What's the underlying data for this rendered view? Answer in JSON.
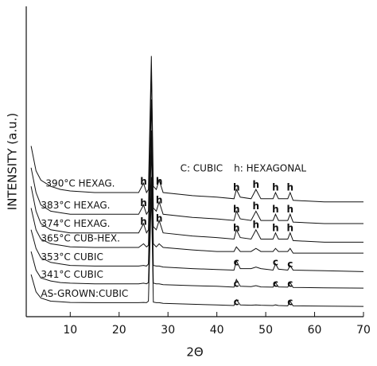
{
  "chart_data": {
    "type": "line",
    "x_label": "2Θ",
    "y_label": "INTENSITY  (a.u.)",
    "xlim": [
      1,
      70
    ],
    "ylim": [
      0,
      100
    ],
    "xticks": [
      10,
      20,
      30,
      40,
      50,
      60,
      70
    ],
    "color": "#111111",
    "x": [
      2,
      3,
      4,
      6,
      8,
      10,
      15,
      20,
      24,
      25,
      25.6,
      26,
      26.6,
      27,
      27.6,
      28.2,
      29,
      35,
      40,
      43.5,
      44,
      44.8,
      47,
      48,
      49,
      51.5,
      52,
      52.6,
      54.5,
      55,
      55.6,
      62,
      70
    ],
    "series": [
      {
        "name": "390°C HEXAG.",
        "values": [
          55,
          47,
          44,
          42,
          41,
          40.5,
          40,
          40,
          40,
          43,
          40,
          41,
          84,
          42,
          41,
          44,
          40,
          39,
          38.5,
          38,
          41,
          38.5,
          38,
          41,
          38,
          38,
          40,
          38,
          38,
          40,
          37.5,
          37,
          37
        ]
      },
      {
        "name": "383°C HEXAG.",
        "values": [
          48,
          40,
          36,
          34,
          33.5,
          33,
          33,
          33,
          33,
          36,
          33,
          34,
          80,
          35,
          34,
          37,
          33,
          32,
          31.5,
          31,
          34,
          31.5,
          31,
          34,
          31,
          31,
          33,
          31,
          31,
          33,
          30.5,
          30,
          30
        ]
      },
      {
        "name": "374°C HEXAG.",
        "values": [
          42,
          34,
          30,
          28,
          27.5,
          27,
          27,
          27,
          27,
          30,
          27,
          28,
          70,
          29,
          28,
          31,
          27,
          26,
          25.5,
          25,
          28,
          25.5,
          25,
          28,
          25,
          25,
          27,
          25,
          25,
          27,
          24.5,
          24,
          24
        ]
      },
      {
        "name": "365°C CUB-HEX.",
        "values": [
          35,
          28,
          25,
          23.5,
          23,
          22.5,
          22.3,
          22.3,
          22.3,
          23.5,
          22.5,
          23,
          60,
          23.5,
          22.5,
          23.5,
          22.3,
          21.5,
          21,
          21,
          22.5,
          21,
          21,
          22,
          21,
          21,
          22,
          21,
          21,
          22,
          20.5,
          20.5,
          20.5
        ]
      },
      {
        "name": "353°C CUBIC",
        "values": [
          28,
          22,
          19,
          17.5,
          17,
          16.5,
          16.3,
          16.3,
          16.3,
          16.5,
          16.3,
          17,
          55,
          16.5,
          16.3,
          16.3,
          16,
          15.5,
          15.2,
          15,
          18,
          15.5,
          15.5,
          16,
          15.5,
          15,
          17,
          15.3,
          15,
          16.5,
          15,
          14.8,
          14.5
        ]
      },
      {
        "name": "341°C CUBIC",
        "values": [
          21,
          15,
          12.5,
          11.5,
          11,
          10.8,
          10.6,
          10.6,
          10.6,
          10.8,
          10.6,
          11,
          45,
          10.8,
          10.6,
          10.6,
          10.3,
          10,
          9.8,
          9.5,
          12,
          9.8,
          9.7,
          10,
          9.6,
          9.5,
          11,
          9.6,
          9.5,
          11,
          9.4,
          9.3,
          9.2
        ]
      },
      {
        "name": "AS-GROWN:CUBIC",
        "values": [
          13.6,
          8,
          6,
          5,
          4.8,
          4.6,
          4.5,
          4.5,
          4.5,
          4.6,
          4.5,
          5,
          40,
          4.7,
          4.5,
          4.5,
          4.3,
          4,
          3.8,
          3.6,
          5.5,
          3.8,
          3.7,
          3.8,
          3.7,
          3.6,
          3.8,
          3.6,
          3.5,
          5,
          3.5,
          3.4,
          3.3
        ]
      }
    ],
    "annotations": [
      {
        "text": "C: CUBIC",
        "x": 32.5,
        "y": 47.7
      },
      {
        "text": "h: HEXAGONAL",
        "x": 43.5,
        "y": 47.7
      }
    ],
    "peak_markers": [
      {
        "text": "h",
        "x": 25,
        "y": 43.5
      },
      {
        "text": "h",
        "x": 28.2,
        "y": 43.5
      },
      {
        "text": "h",
        "x": 44,
        "y": 41.5
      },
      {
        "text": "h",
        "x": 48,
        "y": 42.5
      },
      {
        "text": "h",
        "x": 52,
        "y": 41.5
      },
      {
        "text": "h",
        "x": 55,
        "y": 41.5
      },
      {
        "text": "h",
        "x": 25,
        "y": 36.5
      },
      {
        "text": "h",
        "x": 28.2,
        "y": 37.5
      },
      {
        "text": "h",
        "x": 44,
        "y": 34.5
      },
      {
        "text": "h",
        "x": 48,
        "y": 35.5
      },
      {
        "text": "h",
        "x": 52,
        "y": 34.5
      },
      {
        "text": "h",
        "x": 55,
        "y": 34.5
      },
      {
        "text": "h",
        "x": 25,
        "y": 30.5
      },
      {
        "text": "h",
        "x": 28.2,
        "y": 31.5
      },
      {
        "text": "h",
        "x": 44,
        "y": 28.5
      },
      {
        "text": "h",
        "x": 48,
        "y": 29.5
      },
      {
        "text": "h",
        "x": 52,
        "y": 28.5
      },
      {
        "text": "h",
        "x": 55,
        "y": 28.5
      },
      {
        "text": "c",
        "x": 44,
        "y": 17.5
      },
      {
        "text": "c",
        "x": 52,
        "y": 17.5
      },
      {
        "text": "c",
        "x": 55,
        "y": 16.8
      },
      {
        "text": "c",
        "x": 44,
        "y": 10.5
      },
      {
        "text": "c",
        "x": 52,
        "y": 10.5
      },
      {
        "text": "c",
        "x": 55,
        "y": 10.5
      },
      {
        "text": "c",
        "x": 44,
        "y": 4.6
      },
      {
        "text": "c",
        "x": 55,
        "y": 4.6
      }
    ]
  }
}
